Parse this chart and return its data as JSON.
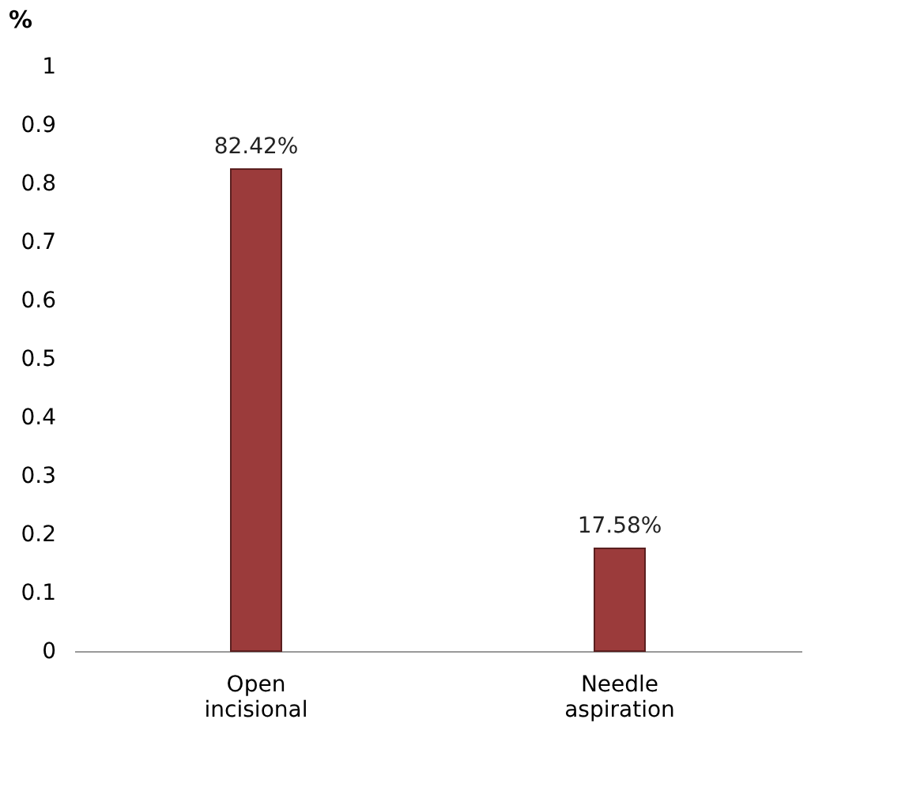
{
  "chart_data": {
    "type": "bar",
    "ylabel": "%",
    "categories": [
      "Open incisional",
      "Needle aspiration"
    ],
    "values": [
      0.8242,
      0.1758
    ],
    "value_labels": [
      "82.42%",
      "17.58%"
    ],
    "color": "#9b3b3b",
    "ylim": [
      0,
      1
    ],
    "yticks": [
      0,
      0.1,
      0.2,
      0.3,
      0.4,
      0.5,
      0.6,
      0.7,
      0.8,
      0.9,
      1
    ],
    "grid": false
  }
}
